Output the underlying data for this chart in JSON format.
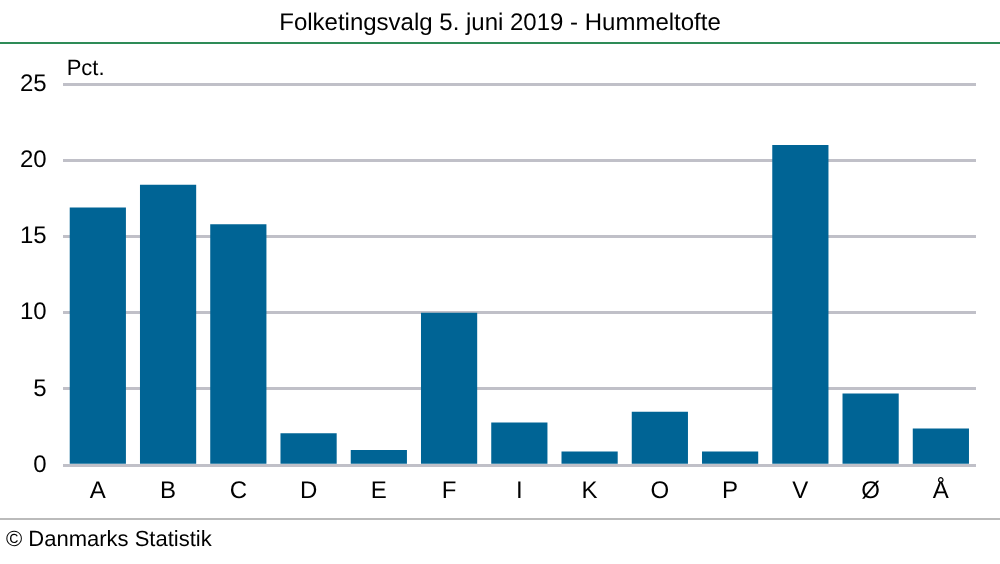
{
  "chart_data": {
    "type": "bar",
    "title": "Folketingsvalg 5. juni 2019 - Hummeltofte",
    "ylabel": "Pct.",
    "categories": [
      "A",
      "B",
      "C",
      "D",
      "E",
      "F",
      "I",
      "K",
      "O",
      "P",
      "V",
      "Ø",
      "Å"
    ],
    "values": [
      16.9,
      18.4,
      15.8,
      2.1,
      1.0,
      10.0,
      2.8,
      0.9,
      3.5,
      0.9,
      21.0,
      4.7,
      2.4
    ],
    "color": "#006495",
    "ylim": [
      0,
      25
    ],
    "yticks": [
      0,
      5,
      10,
      15,
      20,
      25
    ],
    "grid": "y",
    "legend": false,
    "annotations": [
      "© Danmarks Statistik"
    ]
  }
}
